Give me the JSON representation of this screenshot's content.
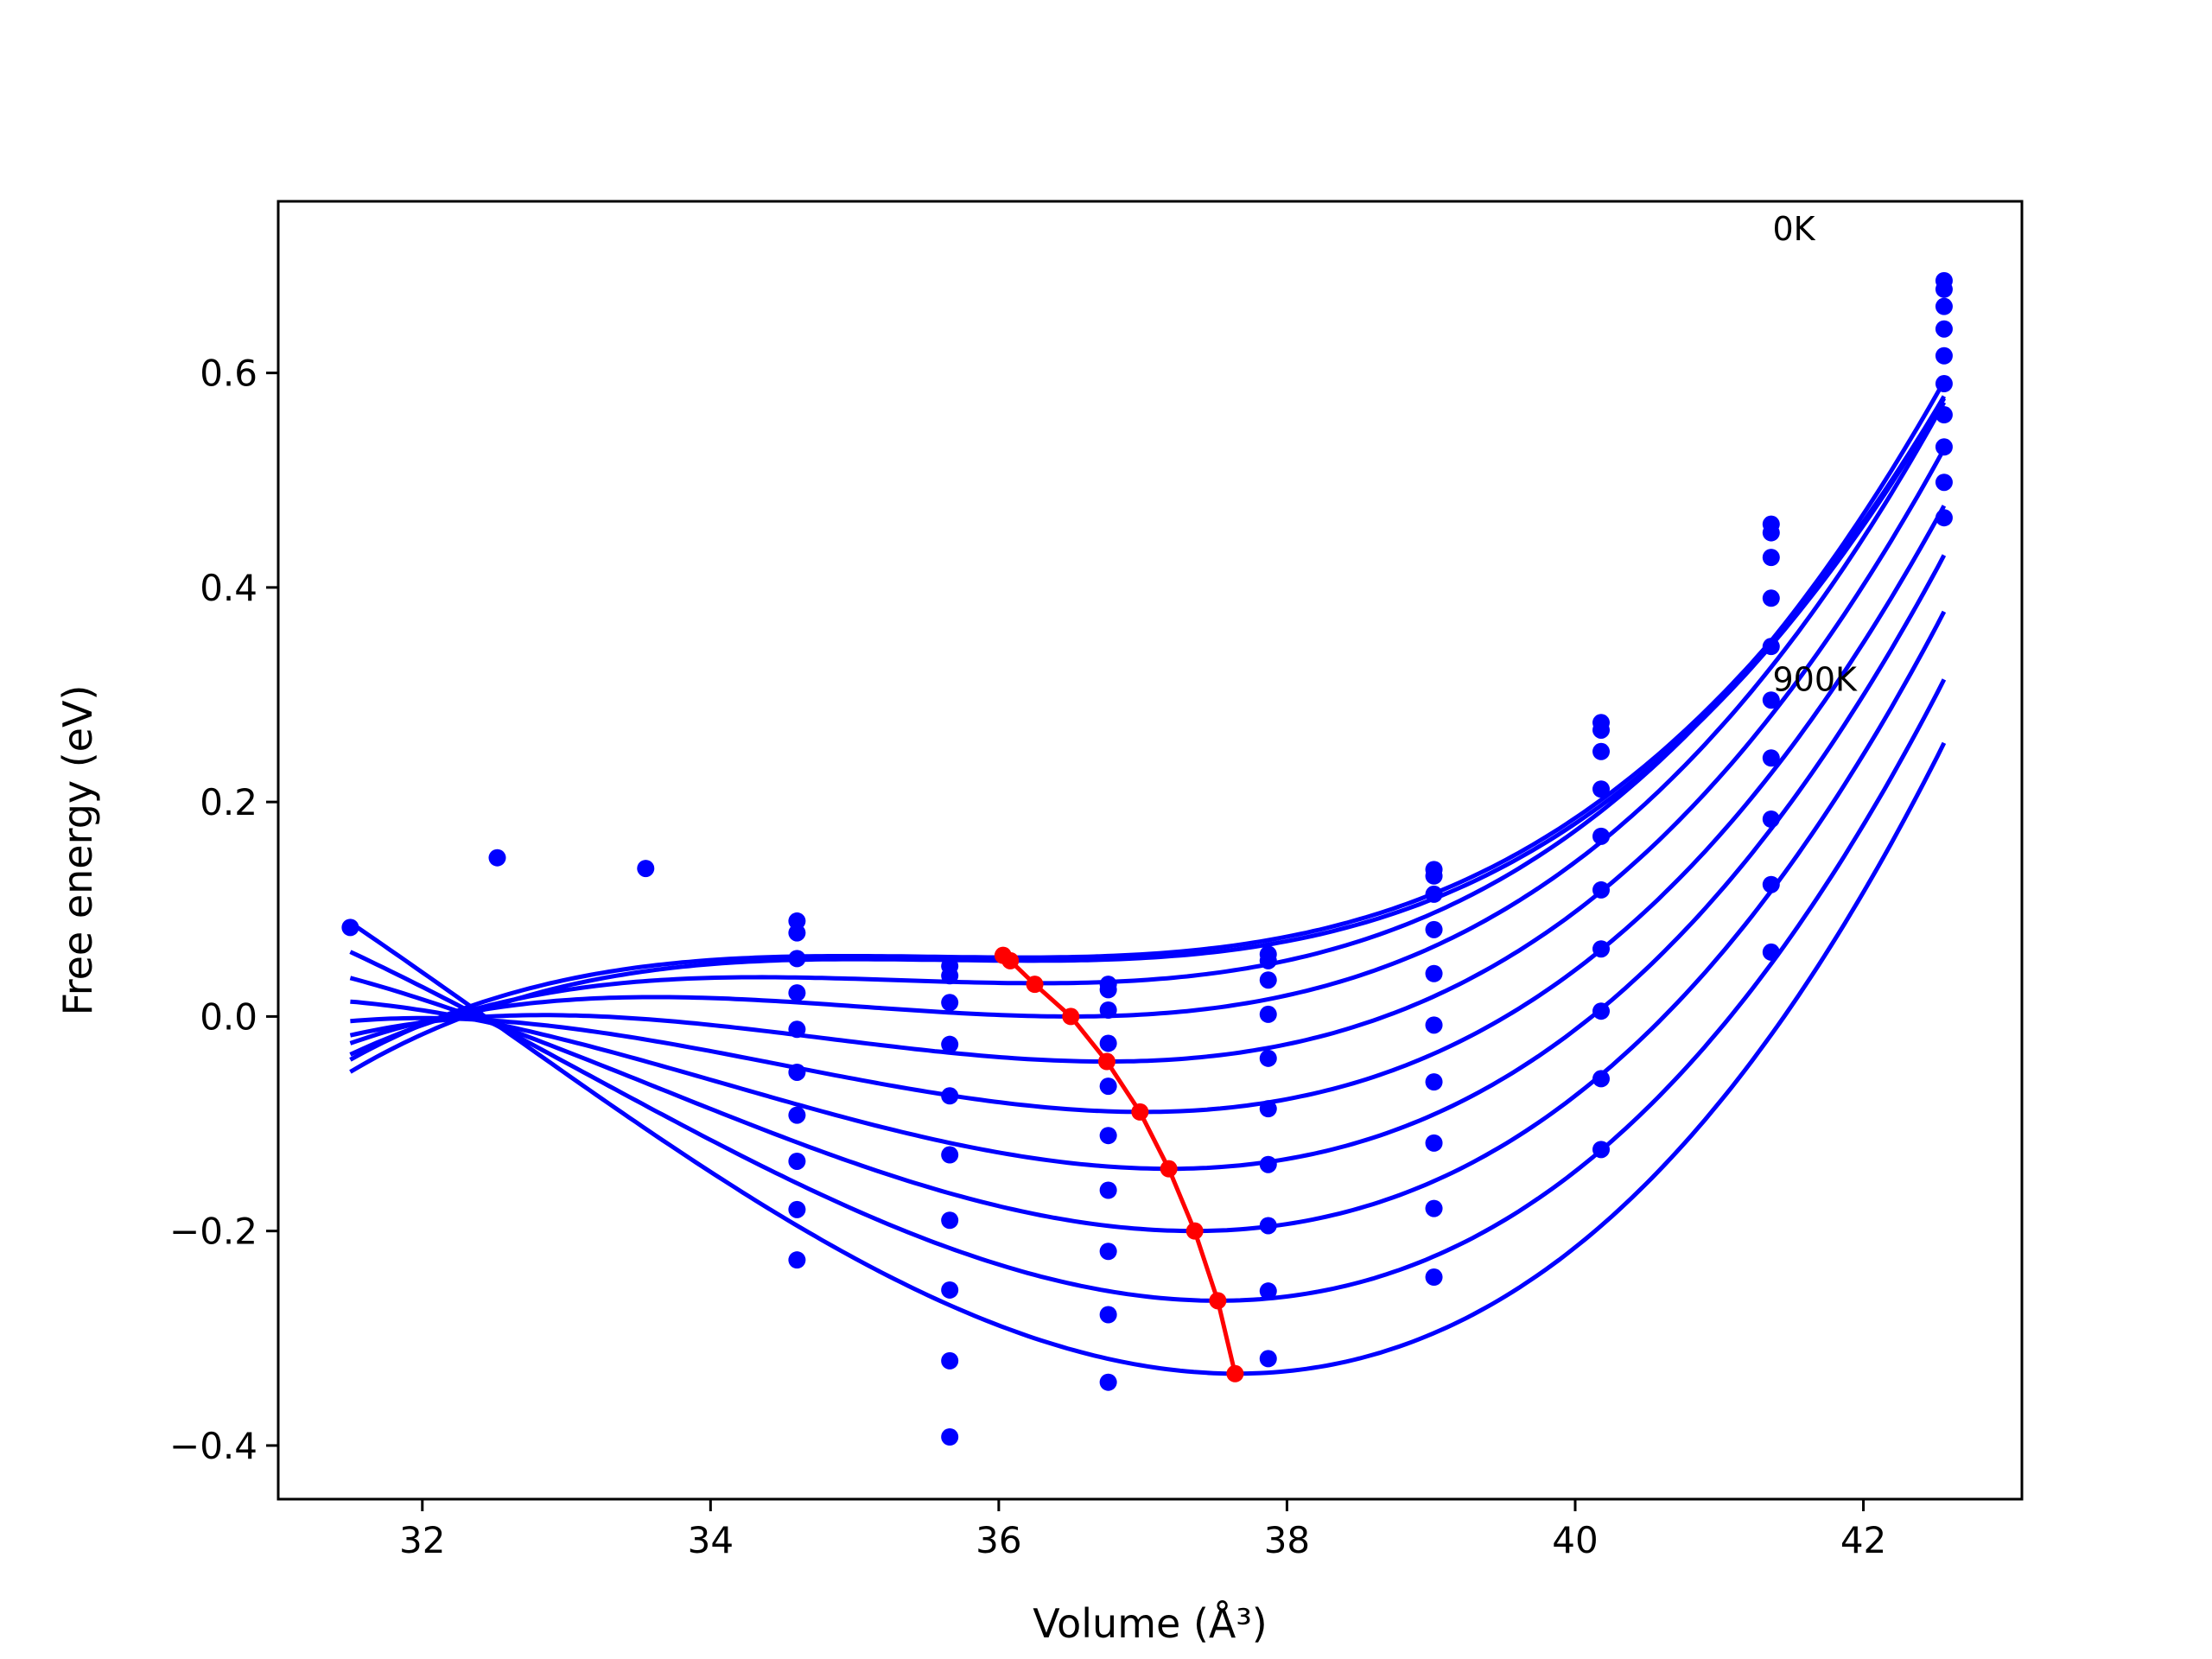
{
  "chart_data": {
    "type": "line",
    "title": "",
    "xlabel": "Volume (Å³)",
    "ylabel": "Free energy (eV)",
    "xlim": [
      31.0,
      43.1
    ],
    "ylim": [
      -0.45,
      0.76
    ],
    "xticks": [
      {
        "v": 32,
        "label": "32"
      },
      {
        "v": 34,
        "label": "34"
      },
      {
        "v": 36,
        "label": "36"
      },
      {
        "v": 38,
        "label": "38"
      },
      {
        "v": 40,
        "label": "40"
      },
      {
        "v": 42,
        "label": "42"
      }
    ],
    "yticks": [
      {
        "v": -0.4,
        "label": "−0.4"
      },
      {
        "v": -0.2,
        "label": "−0.2"
      },
      {
        "v": 0.0,
        "label": "0.0"
      },
      {
        "v": 0.2,
        "label": "0.2"
      },
      {
        "v": 0.4,
        "label": "0.4"
      },
      {
        "v": 0.6,
        "label": "0.6"
      }
    ],
    "grid": false,
    "annotations": [
      {
        "text": "0K",
        "x": 41.37,
        "y": 0.735
      },
      {
        "text": "900K",
        "x": 41.37,
        "y": 0.315
      }
    ],
    "colors": {
      "fit": "#0000ff",
      "points": "#0000ff",
      "minimum_path": "#ff0000",
      "frame": "#000000"
    },
    "x_volumes": [
      31.5,
      32.52,
      33.55,
      34.6,
      35.66,
      36.76,
      37.87,
      39.02,
      40.18,
      41.36,
      42.56
    ],
    "fit_series": [
      {
        "v0": 36.15,
        "e0": 0.055,
        "b": 0.0028,
        "c": 0.00155,
        "vmin": 31.5,
        "vmax": 42.56
      },
      {
        "v0": 36.22,
        "e0": 0.052,
        "b": 0.0029,
        "c": 0.0016,
        "vmin": 31.5,
        "vmax": 42.56
      },
      {
        "v0": 36.28,
        "e0": 0.031,
        "b": 0.0045,
        "c": 0.00155,
        "vmin": 31.5,
        "vmax": 42.56
      },
      {
        "v0": 36.5,
        "e0": 0.0,
        "b": 0.0065,
        "c": 0.0015,
        "vmin": 31.5,
        "vmax": 42.56
      },
      {
        "v0": 36.75,
        "e0": -0.042,
        "b": 0.0085,
        "c": 0.00145,
        "vmin": 31.5,
        "vmax": 42.56
      },
      {
        "v0": 37.0,
        "e0": -0.089,
        "b": 0.0105,
        "c": 0.0014,
        "vmin": 31.5,
        "vmax": 42.56
      },
      {
        "v0": 37.18,
        "e0": -0.142,
        "b": 0.0125,
        "c": 0.00135,
        "vmin": 31.5,
        "vmax": 42.56
      },
      {
        "v0": 37.35,
        "e0": -0.2,
        "b": 0.0145,
        "c": 0.0013,
        "vmin": 31.5,
        "vmax": 42.56
      },
      {
        "v0": 37.52,
        "e0": -0.265,
        "b": 0.0165,
        "c": 0.00125,
        "vmin": 31.5,
        "vmax": 42.56
      },
      {
        "v0": 37.65,
        "e0": -0.333,
        "b": 0.0185,
        "c": 0.0012,
        "vmin": 31.5,
        "vmax": 42.56
      }
    ],
    "points": [
      [
        31.5,
        0.083
      ],
      [
        32.52,
        0.148
      ],
      [
        33.55,
        0.138
      ],
      [
        34.6,
        0.089
      ],
      [
        34.6,
        0.078
      ],
      [
        34.6,
        0.054
      ],
      [
        34.6,
        0.022
      ],
      [
        34.6,
        -0.012
      ],
      [
        34.6,
        -0.052
      ],
      [
        34.6,
        -0.092
      ],
      [
        34.6,
        -0.135
      ],
      [
        34.6,
        -0.18
      ],
      [
        34.6,
        -0.227
      ],
      [
        35.66,
        0.047
      ],
      [
        35.66,
        0.038
      ],
      [
        35.66,
        0.013
      ],
      [
        35.66,
        -0.026
      ],
      [
        35.66,
        -0.074
      ],
      [
        35.66,
        -0.129
      ],
      [
        35.66,
        -0.19
      ],
      [
        35.66,
        -0.255
      ],
      [
        35.66,
        -0.321
      ],
      [
        35.66,
        -0.392
      ],
      [
        36.76,
        0.03
      ],
      [
        36.76,
        0.025
      ],
      [
        36.76,
        0.006
      ],
      [
        36.76,
        -0.025
      ],
      [
        36.76,
        -0.065
      ],
      [
        36.76,
        -0.111
      ],
      [
        36.76,
        -0.162
      ],
      [
        36.76,
        -0.219
      ],
      [
        36.76,
        -0.278
      ],
      [
        36.76,
        -0.341
      ],
      [
        37.87,
        0.058
      ],
      [
        37.87,
        0.052
      ],
      [
        37.87,
        0.034
      ],
      [
        37.87,
        0.002
      ],
      [
        37.87,
        -0.039
      ],
      [
        37.87,
        -0.086
      ],
      [
        37.87,
        -0.138
      ],
      [
        37.87,
        -0.195
      ],
      [
        37.87,
        -0.256
      ],
      [
        37.87,
        -0.319
      ],
      [
        39.02,
        0.137
      ],
      [
        39.02,
        0.131
      ],
      [
        39.02,
        0.114
      ],
      [
        39.02,
        0.081
      ],
      [
        39.02,
        0.04
      ],
      [
        39.02,
        -0.008
      ],
      [
        39.02,
        -0.061
      ],
      [
        39.02,
        -0.118
      ],
      [
        39.02,
        -0.179
      ],
      [
        39.02,
        -0.243
      ],
      [
        40.18,
        0.274
      ],
      [
        40.18,
        0.267
      ],
      [
        40.18,
        0.247
      ],
      [
        40.18,
        0.212
      ],
      [
        40.18,
        0.168
      ],
      [
        40.18,
        0.118
      ],
      [
        40.18,
        0.063
      ],
      [
        40.18,
        0.005
      ],
      [
        40.18,
        -0.058
      ],
      [
        40.18,
        -0.124
      ],
      [
        41.36,
        0.459
      ],
      [
        41.36,
        0.451
      ],
      [
        41.36,
        0.428
      ],
      [
        41.36,
        0.39
      ],
      [
        41.36,
        0.345
      ],
      [
        41.36,
        0.295
      ],
      [
        41.36,
        0.241
      ],
      [
        41.36,
        0.184
      ],
      [
        41.36,
        0.123
      ],
      [
        41.36,
        0.06
      ],
      [
        42.56,
        0.686
      ],
      [
        42.56,
        0.678
      ],
      [
        42.56,
        0.662
      ],
      [
        42.56,
        0.641
      ],
      [
        42.56,
        0.616
      ],
      [
        42.56,
        0.59
      ],
      [
        42.56,
        0.561
      ],
      [
        42.56,
        0.531
      ],
      [
        42.56,
        0.498
      ],
      [
        42.56,
        0.465
      ]
    ],
    "minimum_path": [
      [
        36.03,
        0.057
      ],
      [
        36.08,
        0.052
      ],
      [
        36.25,
        0.03
      ],
      [
        36.5,
        0.0
      ],
      [
        36.75,
        -0.042
      ],
      [
        36.98,
        -0.089
      ],
      [
        37.18,
        -0.142
      ],
      [
        37.36,
        -0.2
      ],
      [
        37.52,
        -0.265
      ],
      [
        37.64,
        -0.333
      ]
    ]
  }
}
